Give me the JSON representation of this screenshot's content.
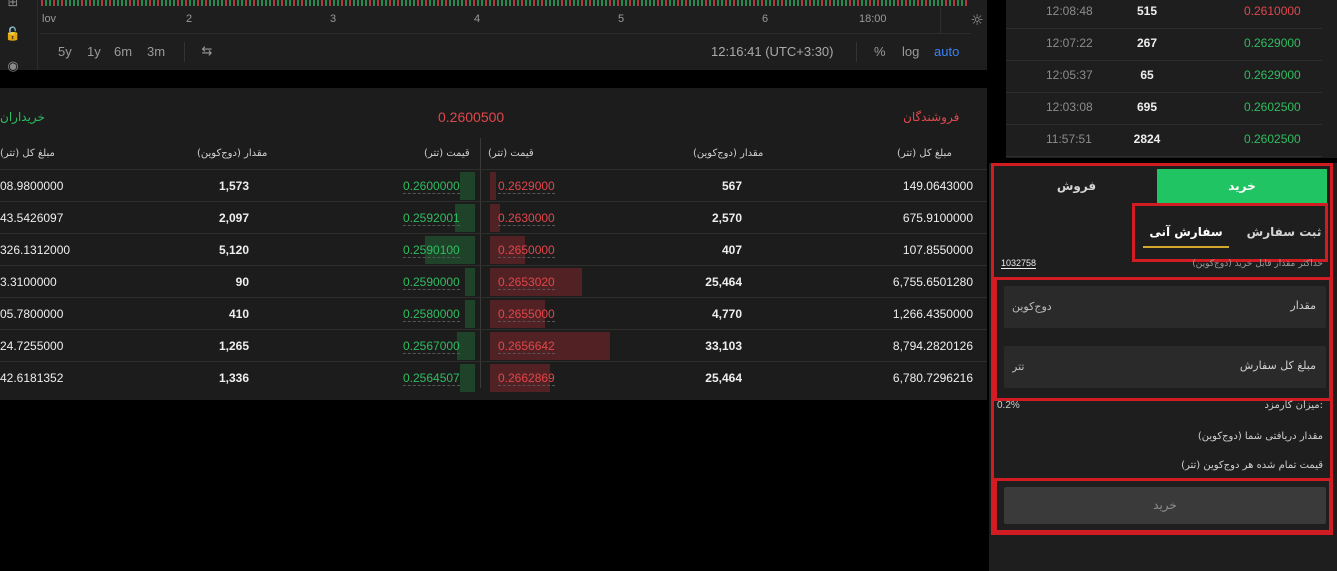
{
  "chart": {
    "time_ticks": [
      "lov",
      "2",
      "3",
      "4",
      "5",
      "6",
      "18:00"
    ],
    "ranges": [
      "5y",
      "1y",
      "6m",
      "3m"
    ],
    "clock": "12:16:41 (UTC+3:30)",
    "percent": "%",
    "log": "log",
    "auto": "auto",
    "auto_color": "#3b82f6"
  },
  "orderbook": {
    "buyers_title": "خریداران",
    "sellers_title": "فروشندگان",
    "last_price": "0.2600500",
    "headers": {
      "buy_total": "مبلغ کل (تتر)",
      "buy_amount": "مقدار (دوج‌کوین)",
      "buy_price": "قیمت (تتر)",
      "sell_price": "قیمت (تتر)",
      "sell_amount": "مقدار (دوج‌کوین)",
      "sell_total": "مبلغ کل (تتر)"
    },
    "rows": [
      {
        "buy_total": "08.9800000",
        "buy_amount": "1,573",
        "buy_price": "0.2600000",
        "sell_price": "0.2629000",
        "sell_amount": "567",
        "sell_total": "149.0643000"
      },
      {
        "buy_total": "43.5426097",
        "buy_amount": "2,097",
        "buy_price": "0.2592001",
        "sell_price": "0.2630000",
        "sell_amount": "2,570",
        "sell_total": "675.9100000"
      },
      {
        "buy_total": "326.1312000",
        "buy_amount": "5,120",
        "buy_price": "0.2590100",
        "sell_price": "0.2650000",
        "sell_amount": "407",
        "sell_total": "107.8550000"
      },
      {
        "buy_total": "3.3100000",
        "buy_amount": "90",
        "buy_price": "0.2590000",
        "sell_price": "0.2653020",
        "sell_amount": "25,464",
        "sell_total": "6,755.6501280"
      },
      {
        "buy_total": "05.7800000",
        "buy_amount": "410",
        "buy_price": "0.2580000",
        "sell_price": "0.2655000",
        "sell_amount": "4,770",
        "sell_total": "1,266.4350000"
      },
      {
        "buy_total": "24.7255000",
        "buy_amount": "1,265",
        "buy_price": "0.2567000",
        "sell_price": "0.2656642",
        "sell_amount": "33,103",
        "sell_total": "8,794.2820126"
      },
      {
        "buy_total": "42.6181352",
        "buy_amount": "1,336",
        "buy_price": "0.2564507",
        "sell_price": "0.2662869",
        "sell_amount": "25,464",
        "sell_total": "6,780.7296216"
      }
    ],
    "buy_color": "#2ebd5f",
    "sell_color": "#e0474c"
  },
  "trades": [
    {
      "time": "12:08:48",
      "qty": "515",
      "price": "0.2610000",
      "side": "sell"
    },
    {
      "time": "12:07:22",
      "qty": "267",
      "price": "0.2629000",
      "side": "buy"
    },
    {
      "time": "12:05:37",
      "qty": "65",
      "price": "0.2629000",
      "side": "buy"
    },
    {
      "time": "12:03:08",
      "qty": "695",
      "price": "0.2602500",
      "side": "buy"
    },
    {
      "time": "11:57:51",
      "qty": "2824",
      "price": "0.2602500",
      "side": "buy"
    }
  ],
  "order_panel": {
    "tab_buy": "خرید",
    "tab_sell": "فروش",
    "tab_limit": "ثبت سفارش",
    "tab_instant": "سفارش آنی",
    "max_label": "حداکثر مقدار قابل خرید (دوج‌کوین)",
    "max_value": "1032758",
    "amount_label": "مقدار",
    "amount_placeholder": "دوج‌کوین",
    "total_label": "مبلغ کل سفارش",
    "total_placeholder": "تتر",
    "fee_label": "میزان کارمزد:",
    "fee_value": "0.2%",
    "receive_label": "مقدار دریافتی شما (دوج‌کوین)",
    "unit_price_label": "قیمت تمام شده هر دوج‌کوین (تتر)",
    "submit_label": "خرید",
    "accent_buy": "#20c462",
    "highlight_color": "#d21c24"
  }
}
